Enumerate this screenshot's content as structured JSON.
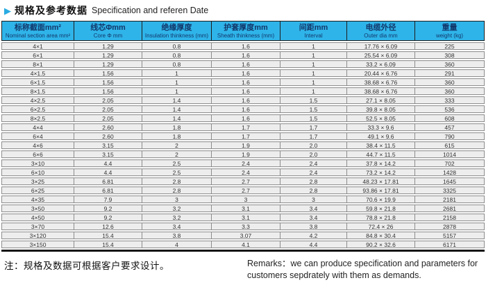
{
  "title": {
    "cn": "规格及参考数据",
    "en": "Specification and referen Date"
  },
  "colors": {
    "accent_blue": "#29abe2",
    "header_bg": "#2fb4e9",
    "header_text": "#12386b",
    "row_bg": "#ededed"
  },
  "table": {
    "columns": [
      {
        "cn": "标称截面mm²",
        "en": "Nominal section area mm²"
      },
      {
        "cn": "线芯Φmm",
        "en": "Core Φ mm"
      },
      {
        "cn": "绝缘厚度",
        "en": "Insulation thinkness (mm)"
      },
      {
        "cn": "护套厚度mm",
        "en": "Sheath thinkness (mm)"
      },
      {
        "cn": "间距mm",
        "en": "Interval"
      },
      {
        "cn": "电缆外径",
        "en": "Outer dia mm"
      },
      {
        "cn": "重量",
        "en": "weight (kg)"
      }
    ],
    "rows": [
      [
        "4×1",
        "1.29",
        "0.8",
        "1.6",
        "1",
        "17.76 × 6.09",
        "225"
      ],
      [
        "6×1",
        "1.29",
        "0.8",
        "1.6",
        "1",
        "25.54 × 6.09",
        "308"
      ],
      [
        "8×1",
        "1.29",
        "0.8",
        "1.6",
        "1",
        "33.2 × 6.09",
        "360"
      ],
      [
        "4×1.5",
        "1.56",
        "1",
        "1.6",
        "1",
        "20.44 × 6.76",
        "291"
      ],
      [
        "6×1.5",
        "1.56",
        "1",
        "1.6",
        "1",
        "38.68 × 6.76",
        "360"
      ],
      [
        "8×1.5",
        "1.56",
        "1",
        "1.6",
        "1",
        "38.68 × 6.76",
        "360"
      ],
      [
        "4×2.5",
        "2.05",
        "1.4",
        "1.6",
        "1.5",
        "27.1 × 8.05",
        "333"
      ],
      [
        "6×2.5",
        "2.05",
        "1.4",
        "1.6",
        "1.5",
        "39.8 × 8.05",
        "536"
      ],
      [
        "8×2.5",
        "2.05",
        "1.4",
        "1.6",
        "1.5",
        "52.5 × 8.05",
        "608"
      ],
      [
        "4×4",
        "2.60",
        "1.8",
        "1.7",
        "1.7",
        "33.3 × 9.6",
        "457"
      ],
      [
        "6×4",
        "2.60",
        "1.8",
        "1.7",
        "1.7",
        "49.1 × 9.6",
        "790"
      ],
      [
        "4×6",
        "3.15",
        "2",
        "1.9",
        "2.0",
        "38.4 × 11.5",
        "615"
      ],
      [
        "6×6",
        "3.15",
        "2",
        "1.9",
        "2.0",
        "44.7 × 11.5",
        "1014"
      ],
      [
        "3×10",
        "4.4",
        "2.5",
        "2.4",
        "2.4",
        "37.8 × 14.2",
        "702"
      ],
      [
        "6×10",
        "4.4",
        "2.5",
        "2.4",
        "2.4",
        "73.2 × 14.2",
        "1428"
      ],
      [
        "3×25",
        "6.81",
        "2.8",
        "2.7",
        "2.8",
        "48.23 × 17.81",
        "1645"
      ],
      [
        "6×25",
        "6.81",
        "2.8",
        "2.7",
        "2.8",
        "93.86 × 17.81",
        "3325"
      ],
      [
        "4×35",
        "7.9",
        "3",
        "3",
        "3",
        "70.6 × 19.9",
        "2181"
      ],
      [
        "3×50",
        "9.2",
        "3.2",
        "3.1",
        "3.4",
        "59.8 × 21.8",
        "2681"
      ],
      [
        "4×50",
        "9.2",
        "3.2",
        "3.1",
        "3.4",
        "78.8 × 21.8",
        "2158"
      ],
      [
        "3×70",
        "12.6",
        "3.4",
        "3.3",
        "3.8",
        "72.4 × 26",
        "2878"
      ],
      [
        "3×120",
        "15.4",
        "3.8",
        "3.07",
        "4.2",
        "84.8 × 30.4",
        "5157"
      ],
      [
        "3×150",
        "15.4",
        "4",
        "4.1",
        "4.4",
        "90.2 × 32.6",
        "6171"
      ]
    ]
  },
  "notes": {
    "cn": "注：规格及数据可根据客户要求设计。",
    "en": "Remarks：we can produce specification and parameters for customers sepdrately with them as demands."
  }
}
